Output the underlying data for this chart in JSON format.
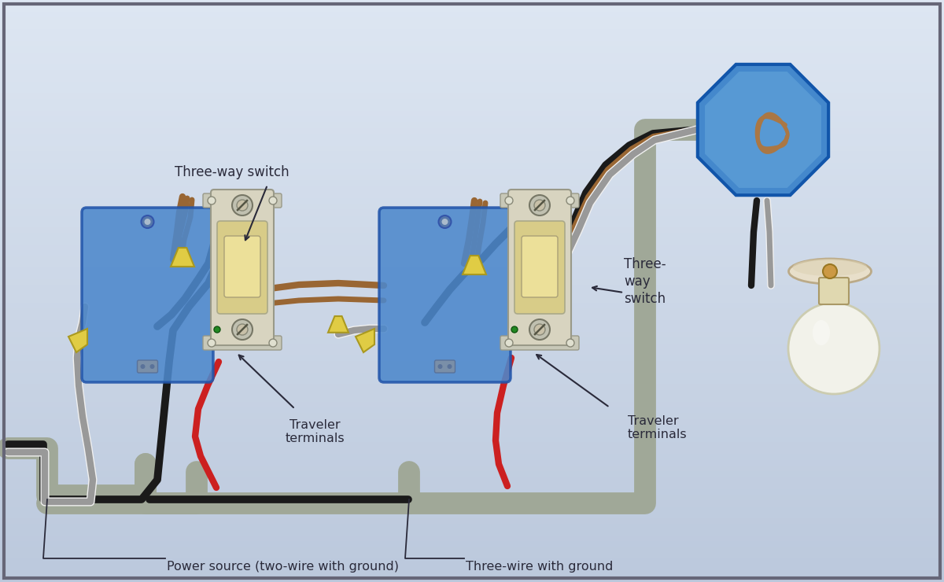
{
  "bg_color": "#cdd6e8",
  "bg_gradient_top": "#dde6f2",
  "border_color": "#666677",
  "box_color": "#4d88cc",
  "box_border": "#2255aa",
  "switch_plate_color": "#d8d4c0",
  "switch_body_color": "#e0d898",
  "switch_metal_color": "#c0c0b0",
  "wire_black": "#1a1a1a",
  "wire_white": "#f0f0f0",
  "wire_white_outline": "#aaaaaa",
  "wire_red": "#cc2020",
  "wire_brown": "#996633",
  "wire_gray_conduit": "#a0a898",
  "wire_nut_color": "#e0cc44",
  "wire_nut_border": "#aa9920",
  "oct_fill": "#4488cc",
  "oct_inner": "#6aabdd",
  "oct_border": "#1155aa",
  "coil_color": "#aa7744",
  "bulb_color": "#f2f2ea",
  "bulb_base_color": "#e0d8b0",
  "fixture_color": "#e8dfca",
  "text_color": "#2a2a3a",
  "label_fs": 11.5,
  "label_three_way_1": "Three-way switch",
  "label_three_way_2": "Three-\nway\nswitch",
  "label_traveler_1": "Traveler\nterminals",
  "label_traveler_2": "Traveler\nterminals",
  "label_power": "Power source (two-wire with ground)",
  "label_three_wire": "Three-wire with ground"
}
